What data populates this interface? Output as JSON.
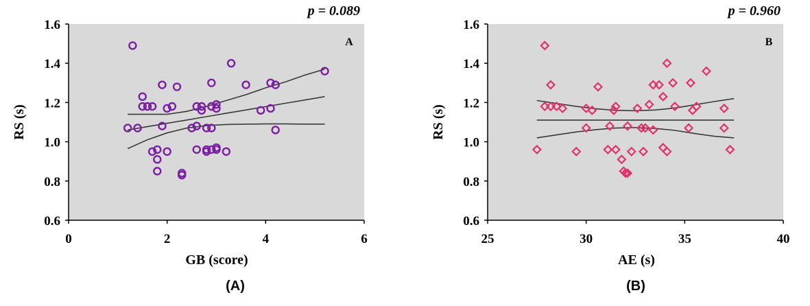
{
  "chart_data": [
    {
      "type": "scatter",
      "panel_letter": "A",
      "p_value": "p = 0.089",
      "xlabel": "GB (score)",
      "ylabel": "RS (s)",
      "caption": "(A)",
      "xlim": [
        0,
        6
      ],
      "ylim": [
        0.6,
        1.6
      ],
      "x_ticks": [
        "0",
        "2",
        "4",
        "6"
      ],
      "y_ticks": [
        "0.6",
        "0.8",
        "1.0",
        "1.2",
        "1.4",
        "1.6"
      ],
      "marker": "circle",
      "marker_color": "#7b1fa2",
      "grid": false,
      "background": "#d9d9d9",
      "points": [
        {
          "x": 1.3,
          "y": 1.49
        },
        {
          "x": 1.2,
          "y": 1.07
        },
        {
          "x": 1.4,
          "y": 1.07
        },
        {
          "x": 1.5,
          "y": 1.23
        },
        {
          "x": 1.5,
          "y": 1.18
        },
        {
          "x": 1.6,
          "y": 1.18
        },
        {
          "x": 1.7,
          "y": 1.18
        },
        {
          "x": 1.7,
          "y": 0.95
        },
        {
          "x": 1.8,
          "y": 0.96
        },
        {
          "x": 1.8,
          "y": 0.91
        },
        {
          "x": 1.8,
          "y": 0.85
        },
        {
          "x": 1.9,
          "y": 1.29
        },
        {
          "x": 1.9,
          "y": 1.08
        },
        {
          "x": 2.0,
          "y": 1.17
        },
        {
          "x": 2.0,
          "y": 0.95
        },
        {
          "x": 2.1,
          "y": 1.18
        },
        {
          "x": 2.2,
          "y": 1.28
        },
        {
          "x": 2.3,
          "y": 0.84
        },
        {
          "x": 2.3,
          "y": 0.83
        },
        {
          "x": 2.5,
          "y": 1.07
        },
        {
          "x": 2.6,
          "y": 1.18
        },
        {
          "x": 2.6,
          "y": 1.08
        },
        {
          "x": 2.6,
          "y": 0.96
        },
        {
          "x": 2.7,
          "y": 1.18
        },
        {
          "x": 2.7,
          "y": 1.16
        },
        {
          "x": 2.8,
          "y": 1.07
        },
        {
          "x": 2.8,
          "y": 0.96
        },
        {
          "x": 2.8,
          "y": 0.95
        },
        {
          "x": 2.9,
          "y": 1.3
        },
        {
          "x": 2.9,
          "y": 1.18
        },
        {
          "x": 2.9,
          "y": 1.07
        },
        {
          "x": 2.9,
          "y": 0.96
        },
        {
          "x": 3.0,
          "y": 1.19
        },
        {
          "x": 3.0,
          "y": 1.17
        },
        {
          "x": 3.0,
          "y": 0.97
        },
        {
          "x": 3.0,
          "y": 0.96
        },
        {
          "x": 3.2,
          "y": 0.95
        },
        {
          "x": 3.3,
          "y": 1.4
        },
        {
          "x": 3.6,
          "y": 1.29
        },
        {
          "x": 3.9,
          "y": 1.16
        },
        {
          "x": 4.1,
          "y": 1.3
        },
        {
          "x": 4.1,
          "y": 1.17
        },
        {
          "x": 4.2,
          "y": 1.29
        },
        {
          "x": 4.2,
          "y": 1.06
        },
        {
          "x": 5.2,
          "y": 1.36
        }
      ],
      "regression": {
        "x": [
          1.2,
          1.6,
          2.0,
          2.4,
          2.8,
          3.2,
          3.6,
          4.0,
          4.4,
          4.8,
          5.2
        ],
        "fit": [
          1.06,
          1.077,
          1.094,
          1.111,
          1.128,
          1.145,
          1.162,
          1.179,
          1.196,
          1.213,
          1.23
        ],
        "upper": [
          1.14,
          1.14,
          1.14,
          1.155,
          1.18,
          1.21,
          1.24,
          1.275,
          1.305,
          1.34,
          1.37
        ],
        "lower": [
          0.965,
          1.01,
          1.045,
          1.07,
          1.082,
          1.088,
          1.09,
          1.091,
          1.091,
          1.09,
          1.09
        ]
      }
    },
    {
      "type": "scatter",
      "panel_letter": "B",
      "p_value": "p = 0.960",
      "xlabel": "AE (s)",
      "ylabel": "RS (s)",
      "caption": "(B)",
      "xlim": [
        25,
        40
      ],
      "ylim": [
        0.6,
        1.6
      ],
      "x_ticks": [
        "25",
        "30",
        "35",
        "40"
      ],
      "y_ticks": [
        "0.6",
        "0.8",
        "1.0",
        "1.2",
        "1.4",
        "1.6"
      ],
      "marker": "diamond",
      "marker_color": "#e0336a",
      "grid": false,
      "background": "#d9d9d9",
      "points": [
        {
          "x": 27.5,
          "y": 0.96
        },
        {
          "x": 27.9,
          "y": 1.49
        },
        {
          "x": 27.9,
          "y": 1.18
        },
        {
          "x": 28.2,
          "y": 1.29
        },
        {
          "x": 28.2,
          "y": 1.18
        },
        {
          "x": 28.5,
          "y": 1.18
        },
        {
          "x": 28.8,
          "y": 1.17
        },
        {
          "x": 29.5,
          "y": 0.95
        },
        {
          "x": 30.0,
          "y": 1.17
        },
        {
          "x": 30.0,
          "y": 1.07
        },
        {
          "x": 30.3,
          "y": 1.16
        },
        {
          "x": 30.6,
          "y": 1.28
        },
        {
          "x": 31.1,
          "y": 0.96
        },
        {
          "x": 31.2,
          "y": 1.08
        },
        {
          "x": 31.4,
          "y": 1.16
        },
        {
          "x": 31.5,
          "y": 1.18
        },
        {
          "x": 31.5,
          "y": 0.96
        },
        {
          "x": 31.8,
          "y": 0.91
        },
        {
          "x": 31.9,
          "y": 0.85
        },
        {
          "x": 32.0,
          "y": 0.84
        },
        {
          "x": 32.1,
          "y": 0.84
        },
        {
          "x": 32.1,
          "y": 1.08
        },
        {
          "x": 32.3,
          "y": 0.95
        },
        {
          "x": 32.6,
          "y": 1.17
        },
        {
          "x": 32.8,
          "y": 1.07
        },
        {
          "x": 32.9,
          "y": 0.95
        },
        {
          "x": 33.0,
          "y": 1.07
        },
        {
          "x": 33.2,
          "y": 1.19
        },
        {
          "x": 33.4,
          "y": 1.29
        },
        {
          "x": 33.4,
          "y": 1.06
        },
        {
          "x": 33.7,
          "y": 1.29
        },
        {
          "x": 33.9,
          "y": 1.23
        },
        {
          "x": 33.9,
          "y": 0.97
        },
        {
          "x": 34.1,
          "y": 1.4
        },
        {
          "x": 34.1,
          "y": 0.95
        },
        {
          "x": 34.4,
          "y": 1.3
        },
        {
          "x": 34.5,
          "y": 1.18
        },
        {
          "x": 35.2,
          "y": 1.07
        },
        {
          "x": 35.3,
          "y": 1.3
        },
        {
          "x": 35.4,
          "y": 1.16
        },
        {
          "x": 35.6,
          "y": 1.18
        },
        {
          "x": 36.1,
          "y": 1.36
        },
        {
          "x": 37.0,
          "y": 1.17
        },
        {
          "x": 37.0,
          "y": 1.07
        },
        {
          "x": 37.3,
          "y": 0.96
        }
      ],
      "regression": {
        "x": [
          27.5,
          28.5,
          29.5,
          30.5,
          31.5,
          32.5,
          33.5,
          34.5,
          35.5,
          36.5,
          37.5
        ],
        "fit": [
          1.11,
          1.11,
          1.11,
          1.11,
          1.11,
          1.11,
          1.11,
          1.11,
          1.11,
          1.11,
          1.11
        ],
        "upper": [
          1.21,
          1.195,
          1.18,
          1.168,
          1.16,
          1.158,
          1.162,
          1.172,
          1.188,
          1.205,
          1.22
        ],
        "lower": [
          1.02,
          1.035,
          1.05,
          1.062,
          1.07,
          1.072,
          1.068,
          1.058,
          1.042,
          1.028,
          1.02
        ]
      }
    }
  ]
}
